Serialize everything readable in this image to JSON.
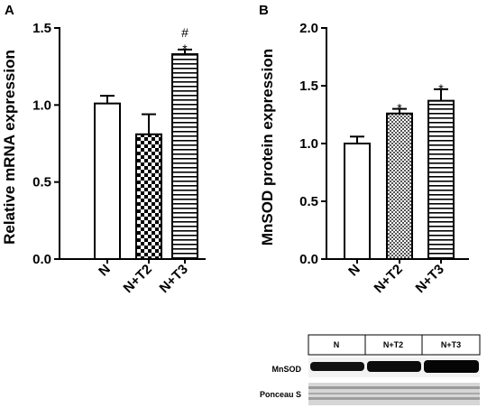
{
  "panels": [
    {
      "letter": "A"
    },
    {
      "letter": "B"
    }
  ],
  "chart_data": [
    {
      "type": "bar",
      "panel": "A",
      "ylabel": "Relative mRNA expression",
      "categories": [
        "N",
        "N+T2",
        "N+T3"
      ],
      "values": [
        1.01,
        0.81,
        1.33
      ],
      "errors": [
        0.05,
        0.13,
        0.03
      ],
      "fills": [
        "white",
        "checker",
        "hstripe"
      ],
      "annotations": [
        "",
        "",
        "#\n*"
      ],
      "ylim": [
        0,
        1.5
      ],
      "yticks": [
        "0.0",
        "0.5",
        "1.0",
        "1.5"
      ],
      "grid": false
    },
    {
      "type": "bar",
      "panel": "B",
      "ylabel": "MnSOD protein expression",
      "categories": [
        "N",
        "N+T2",
        "N+T3"
      ],
      "values": [
        1.0,
        1.26,
        1.37
      ],
      "errors": [
        0.06,
        0.04,
        0.1
      ],
      "fills": [
        "white",
        "dots",
        "hstripe"
      ],
      "annotations": [
        "",
        "*",
        "*"
      ],
      "ylim": [
        0,
        2.0
      ],
      "yticks": [
        "0.0",
        "0.5",
        "1.0",
        "1.5",
        "2.0"
      ],
      "grid": false
    }
  ],
  "blot": {
    "groups": [
      "N",
      "N+T2",
      "N+T3"
    ],
    "rows": [
      "MnSOD",
      "Ponceau S"
    ]
  }
}
